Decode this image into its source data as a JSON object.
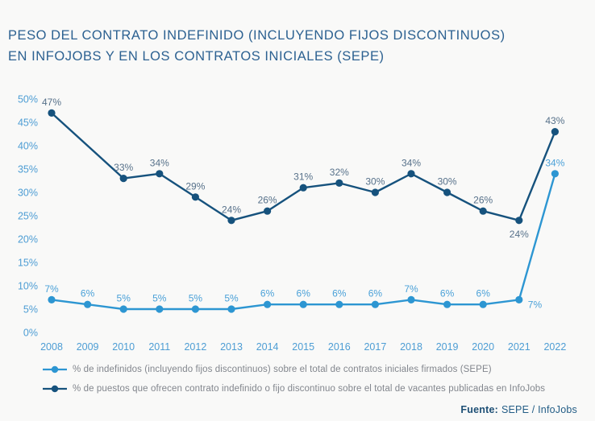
{
  "title": {
    "line1": "PESO DEL CONTRATO INDEFINIDO (INCLUYENDO FIJOS DISCONTINUOS)",
    "line2": "EN INFOJOBS Y EN LOS CONTRATOS INICIALES (SEPE)"
  },
  "footer": {
    "source_label": "Fuente:",
    "source_value": "SEPE / InfoJobs"
  },
  "colors": {
    "background": "#f9f9f8",
    "title": "#2c6191",
    "axis_tick": "#4d9dd4",
    "legend_text": "#82868d",
    "source_text": "#235d86"
  },
  "chart_data": {
    "type": "line",
    "categories": [
      "2008",
      "2009",
      "2010",
      "2011",
      "2012",
      "2013",
      "2014",
      "2015",
      "2016",
      "2017",
      "2018",
      "2019",
      "2020",
      "2021",
      "2022"
    ],
    "series": [
      {
        "name": "% de indefinidos (incluyendo fijos discontinuos) sobre el total de contratos iniciales firmados (SEPE)",
        "color": "#2d96d2",
        "label_color": "#4ba1d8",
        "values": [
          7,
          6,
          5,
          5,
          5,
          5,
          6,
          6,
          6,
          6,
          7,
          6,
          6,
          7,
          34
        ],
        "label_overrides": {
          "13": "right"
        }
      },
      {
        "name": "% de puestos que ofrecen contrato indefinido o fijo discontinuo sobre el total de vacantes publicadas en InfoJobs",
        "color": "#16527d",
        "label_color": "#57718a",
        "values": [
          47,
          null,
          33,
          34,
          29,
          24,
          26,
          31,
          32,
          30,
          34,
          30,
          26,
          24,
          43
        ],
        "label_overrides": {
          "13": "below"
        }
      }
    ],
    "ylim": [
      0,
      50
    ],
    "ytick_step": 5,
    "yticks": [
      "0%",
      "5%",
      "10%",
      "15%",
      "20%",
      "25%",
      "30%",
      "35%",
      "40%",
      "45%",
      "50%"
    ],
    "value_suffix": "%",
    "grid": false,
    "legend_position": "bottom-left"
  }
}
